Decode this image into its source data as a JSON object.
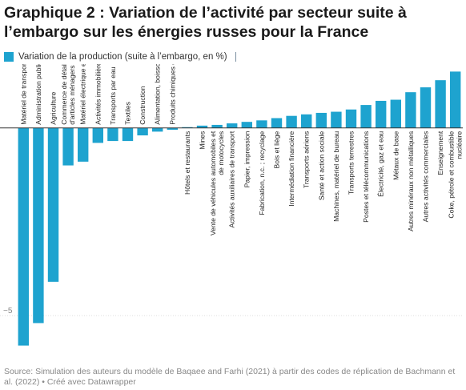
{
  "title": "Graphique 2 : Variation de l’activité par secteur suite à l’embargo sur les énergies russes pour la France",
  "legend": {
    "label": "Variation de la production (suite à l’embargo, en %)",
    "color": "#1ea3cf"
  },
  "source": "Source: Simulation des auteurs du modèle de Baqaee and Farhi (2021) à partir des codes de réplication de Bachmann et al. (2022) • Créé avec Datawrapper",
  "chart_data": {
    "type": "bar",
    "title": "Graphique 2 : Variation de l’activité par secteur suite à l’embargo sur les énergies russes pour la France",
    "xlabel": "",
    "ylabel": "",
    "ylim": [
      -6.3,
      1.7
    ],
    "yticks": [
      {
        "value": -5,
        "label": "−5"
      }
    ],
    "bar_color": "#1ea3cf",
    "categories": [
      "Matériel de transport",
      "Administration publique et défense",
      "Agriculture",
      "Commerce de détail et réparation d'articles ménagers",
      "Matériel électrique et optique",
      "Activités immobilières",
      "Transports par eau",
      "Textiles",
      "Construction",
      "Alimentation, boissons et tabac",
      "Produits chimiques et plastiques",
      "Hôtels et restaurants",
      "Mines",
      "Vente de véhicules automobiles et de motocycles",
      "Activités auxiliaires de transport",
      "Papier, impression",
      "Fabrication, n.c. ; recyclage",
      "Bois et liège",
      "Intermédiation financière",
      "Transports aériens",
      "Santé et action sociale",
      "Machines, matériel de bureau",
      "Transports terrestres",
      "Postes et télécommunications",
      "Électricité, gaz et eau",
      "Métaux de base",
      "Autres minéraux non métalliques",
      "Autres activités commerciales",
      "Enseignement",
      "Coke, pétrole et combustible nucléaire"
    ],
    "values": [
      -5.8,
      -5.2,
      -4.1,
      -1.0,
      -0.9,
      -0.4,
      -0.35,
      -0.35,
      -0.2,
      -0.1,
      -0.05,
      0.02,
      0.06,
      0.08,
      0.12,
      0.16,
      0.2,
      0.26,
      0.32,
      0.36,
      0.4,
      0.43,
      0.49,
      0.61,
      0.72,
      0.75,
      0.95,
      1.08,
      1.27,
      1.5
    ]
  }
}
